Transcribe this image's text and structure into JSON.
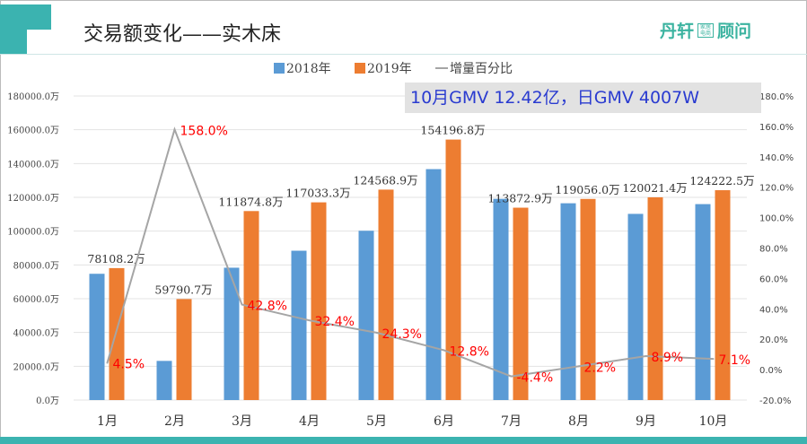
{
  "header": {
    "title": "交易额变化——实木床",
    "logo_left": "丹轩",
    "logo_box": "家居电商",
    "logo_right": "顾问"
  },
  "note": "10月GMV 12.42亿，日GMV 4007W",
  "colors": {
    "s2018": "#5b9bd5",
    "s2019": "#ed7d31",
    "line": "#a5a5a5",
    "pct_label": "#ff0000",
    "accent": "#3bb3b0"
  },
  "chart_data": {
    "type": "bar",
    "categories": [
      "1月",
      "2月",
      "3月",
      "4月",
      "5月",
      "6月",
      "7月",
      "8月",
      "9月",
      "10月"
    ],
    "series": [
      {
        "name": "2018年",
        "values": [
          74745,
          23175,
          78344,
          88394,
          100216,
          136699,
          119114,
          116493,
          110212,
          115987
        ]
      },
      {
        "name": "2019年",
        "values": [
          78108.2,
          59790.7,
          111874.8,
          117033.3,
          124568.9,
          154196.8,
          113872.9,
          119056.0,
          120021.4,
          124222.5
        ],
        "labels": [
          "78108.2万",
          "59790.7万",
          "111874.8万",
          "117033.3万",
          "124568.9万",
          "154196.8万",
          "113872.9万",
          "119056.0万",
          "120021.4万",
          "124222.5万"
        ]
      },
      {
        "name": "增量百分比",
        "type": "line",
        "axis": "right",
        "values": [
          4.5,
          158.0,
          42.8,
          32.4,
          24.3,
          12.8,
          -4.4,
          2.2,
          8.9,
          7.1
        ],
        "labels": [
          "4.5%",
          "158.0%",
          "42.8%",
          "32.4%",
          "24.3%",
          "12.8%",
          "-4.4%",
          "2.2%",
          "8.9%",
          "7.1%"
        ]
      }
    ],
    "ylim": [
      0,
      180000
    ],
    "y_ticks": [
      "0.0万",
      "20000.0万",
      "40000.0万",
      "60000.0万",
      "80000.0万",
      "100000.0万",
      "120000.0万",
      "140000.0万",
      "160000.0万",
      "180000.0万"
    ],
    "y2lim": [
      -20,
      180
    ],
    "y2_ticks": [
      "-20.0%",
      "0.0%",
      "20.0%",
      "40.0%",
      "60.0%",
      "80.0%",
      "100.0%",
      "120.0%",
      "140.0%",
      "160.0%",
      "180.0%"
    ],
    "grid": true,
    "legend": "top"
  }
}
